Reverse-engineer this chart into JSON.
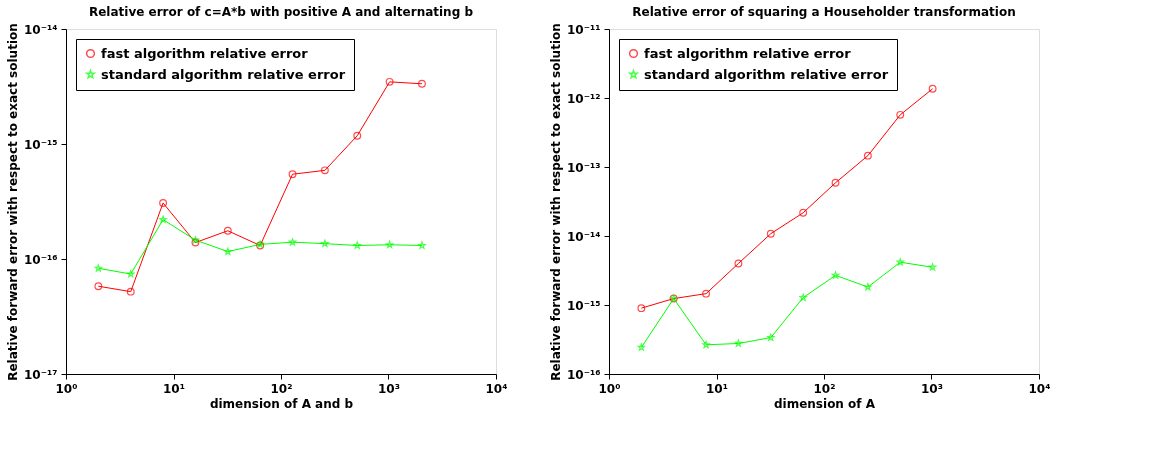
{
  "chart_data": [
    {
      "type": "line",
      "title": "Relative error of c=A*b with positive A and alternating b",
      "xlabel": "dimension of A and b",
      "ylabel": "Relative forward error with respect to exact solution",
      "log": "xy",
      "grid": false,
      "legend": "top left",
      "x": [
        2,
        4,
        8,
        16,
        32,
        64,
        128,
        256,
        512,
        1024,
        2048
      ],
      "series": [
        {
          "name": "fast algorithm relative error",
          "color": "#ff0000",
          "marker": "circle",
          "values": [
            5.8e-17,
            5.2e-17,
            3.07e-16,
            1.39e-16,
            1.76e-16,
            1.31e-16,
            5.46e-16,
            5.9e-16,
            1.18e-15,
            3.47e-15,
            3.34e-15
          ]
        },
        {
          "name": "standard algorithm relative error",
          "color": "#00ff00",
          "marker": "star",
          "values": [
            8.3e-17,
            7.4e-17,
            2.2e-16,
            1.46e-16,
            1.16e-16,
            1.34e-16,
            1.4e-16,
            1.36e-16,
            1.31e-16,
            1.33e-16,
            1.31e-16
          ]
        }
      ],
      "xlim": [
        1,
        10000
      ],
      "xticks": [
        {
          "value": 1,
          "label": "10⁰"
        },
        {
          "value": 10,
          "label": "10¹"
        },
        {
          "value": 100,
          "label": "10²"
        },
        {
          "value": 1000,
          "label": "10³"
        },
        {
          "value": 10000,
          "label": "10⁴"
        }
      ],
      "ylim": [
        1e-17,
        1e-14
      ],
      "yticks": [
        {
          "value": 1e-17,
          "label": "10⁻¹⁷"
        },
        {
          "value": 1e-16,
          "label": "10⁻¹⁶"
        },
        {
          "value": 1e-15,
          "label": "10⁻¹⁵"
        },
        {
          "value": 1e-14,
          "label": "10⁻¹⁴"
        }
      ]
    },
    {
      "type": "line",
      "title": "Relative error of squaring a Householder transformation",
      "xlabel": "dimension of A",
      "ylabel": "Relative forward error with respect to exact solution",
      "log": "xy",
      "grid": false,
      "legend": "top left",
      "x": [
        2,
        4,
        8,
        16,
        32,
        64,
        128,
        256,
        512,
        1024
      ],
      "series": [
        {
          "name": "fast algorithm relative error",
          "color": "#ff0000",
          "marker": "circle",
          "values": [
            9e-16,
            1.24e-15,
            1.46e-15,
            4e-15,
            1.08e-14,
            2.17e-14,
            5.9e-14,
            1.46e-13,
            5.7e-13,
            1.36e-12
          ]
        },
        {
          "name": "standard algorithm relative error",
          "color": "#00ff00",
          "marker": "star",
          "values": [
            2.43e-16,
            1.24e-15,
            2.65e-16,
            2.77e-16,
            3.37e-16,
            1.28e-15,
            2.69e-15,
            1.82e-15,
            4.17e-15,
            3.53e-15
          ]
        }
      ],
      "xlim": [
        1,
        10000
      ],
      "xticks": [
        {
          "value": 1,
          "label": "10⁰"
        },
        {
          "value": 10,
          "label": "10¹"
        },
        {
          "value": 100,
          "label": "10²"
        },
        {
          "value": 1000,
          "label": "10³"
        },
        {
          "value": 10000,
          "label": "10⁴"
        }
      ],
      "ylim": [
        1e-16,
        1e-11
      ],
      "yticks": [
        {
          "value": 1e-16,
          "label": "10⁻¹⁶"
        },
        {
          "value": 1e-15,
          "label": "10⁻¹⁵"
        },
        {
          "value": 1e-14,
          "label": "10⁻¹⁴"
        },
        {
          "value": 1e-13,
          "label": "10⁻¹³"
        },
        {
          "value": 1e-12,
          "label": "10⁻¹²"
        },
        {
          "value": 1e-11,
          "label": "10⁻¹¹"
        }
      ]
    }
  ]
}
